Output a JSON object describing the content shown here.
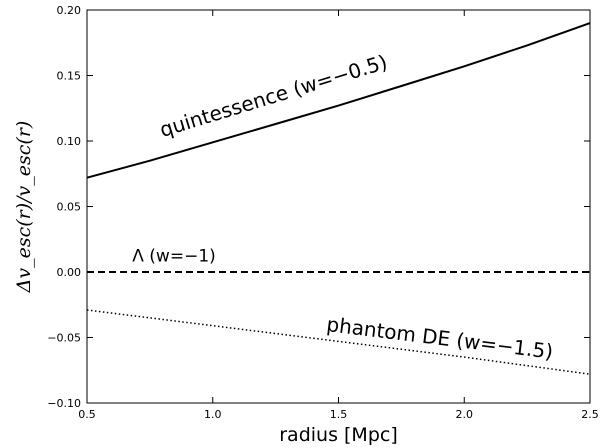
{
  "chart_data": {
    "type": "line",
    "xlabel": "radius [Mpc]",
    "ylabel": "Δv_esc(r)/v_esc(r)",
    "xlim": [
      0.5,
      2.5
    ],
    "ylim": [
      -0.1,
      0.2
    ],
    "grid": false,
    "x_ticks": [
      "0.5",
      "1.0",
      "1.5",
      "2.0",
      "2.5"
    ],
    "y_ticks": [
      "−0.10",
      "−0.05",
      "0.00",
      "0.05",
      "0.10",
      "0.15",
      "0.20"
    ],
    "series": [
      {
        "linestyle": "solid",
        "color": "#000000",
        "x": [
          0.5,
          0.75,
          1.0,
          1.25,
          1.5,
          1.75,
          2.0,
          2.25,
          2.5
        ],
        "y": [
          0.072,
          0.085,
          0.099,
          0.113,
          0.127,
          0.142,
          0.157,
          0.173,
          0.19
        ]
      },
      {
        "linestyle": "dashed",
        "color": "#000000",
        "x": [
          0.5,
          2.5
        ],
        "y": [
          0.0,
          0.0
        ]
      },
      {
        "linestyle": "dotted",
        "color": "#000000",
        "x": [
          0.5,
          1.0,
          1.5,
          2.0,
          2.5
        ],
        "y": [
          -0.029,
          -0.041,
          -0.053,
          -0.065,
          -0.078
        ]
      }
    ],
    "annotations": [
      {
        "text": "quintessence (w=−0.5)",
        "x": 0.8,
        "y": 0.103,
        "rotation_deg": -17
      },
      {
        "text": "Λ (w=−1)",
        "x": 0.68,
        "y": 0.008,
        "rotation_deg": 0
      },
      {
        "text": "phantom DE (w=−1.5)",
        "x": 1.45,
        "y": -0.045,
        "rotation_deg": 7
      }
    ]
  }
}
